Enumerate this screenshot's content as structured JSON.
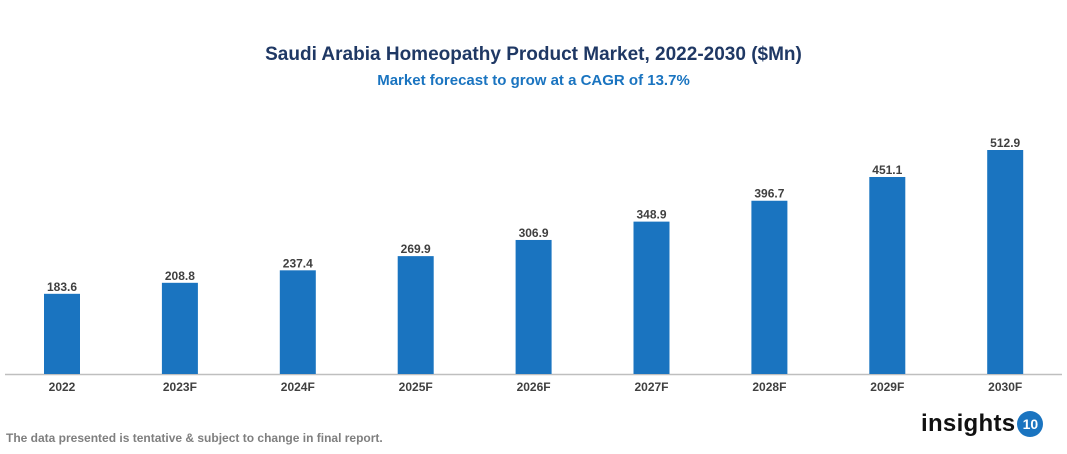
{
  "chart_data": {
    "type": "bar",
    "title": "Saudi Arabia Homeopathy Product Market, 2022-2030 ($Mn)",
    "subtitle": "Market forecast to grow at a CAGR of 13.7%",
    "categories": [
      "2022",
      "2023F",
      "2024F",
      "2025F",
      "2026F",
      "2027F",
      "2028F",
      "2029F",
      "2030F"
    ],
    "values": [
      183.6,
      208.8,
      237.4,
      269.9,
      306.9,
      348.9,
      396.7,
      451.1,
      512.9
    ],
    "data_labels": [
      "183.6",
      "208.8",
      "237.4",
      "269.9",
      "306.9",
      "348.9",
      "396.7",
      "451.1",
      "512.9"
    ],
    "xlabel": "",
    "ylabel": "",
    "ylim": [
      0,
      512.9
    ],
    "grid": false,
    "y_axis_visible": false,
    "bar_color": "#1a74c0"
  },
  "footnote": "The data presented is tentative & subject to change in final report.",
  "logo": {
    "text": "insights",
    "badge": "10",
    "color": "#1a74c0"
  }
}
